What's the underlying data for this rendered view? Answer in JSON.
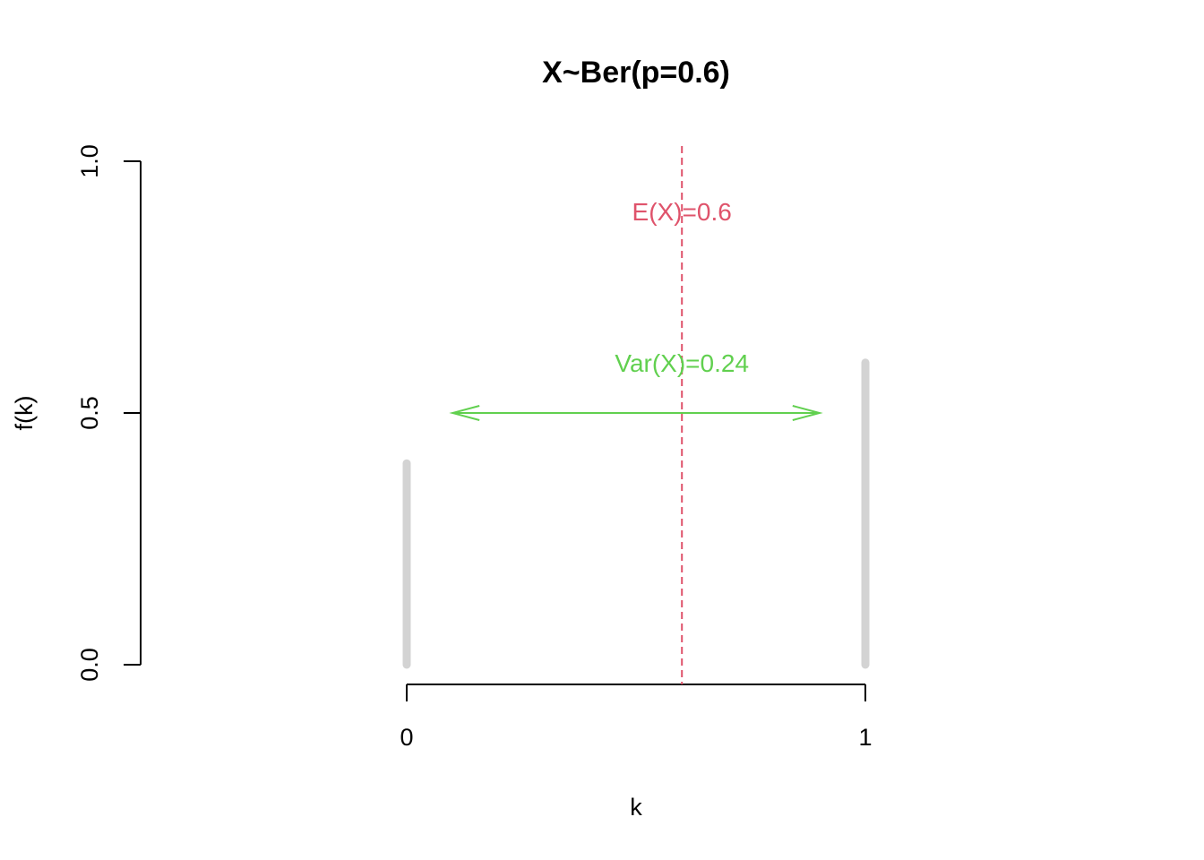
{
  "chart_data": {
    "type": "bar",
    "title": "X~Ber(p=0.6)",
    "xlabel": "k",
    "ylabel": "f(k)",
    "x": [
      0,
      1
    ],
    "values": [
      0.4,
      0.6
    ],
    "xticks": [
      "0",
      "1"
    ],
    "yticks": [
      "0.0",
      "0.5",
      "1.0"
    ],
    "xlim": [
      -0.58,
      1.48
    ],
    "ylim": [
      0,
      1
    ],
    "bar_color": "#d3d3d3",
    "expectation": {
      "value": 0.6,
      "label": "E(X)=0.6",
      "color": "#df536b"
    },
    "variance": {
      "value": 0.24,
      "label": "Var(X)=0.24",
      "color": "#61d04f",
      "arrow_from": 0.1,
      "arrow_to": 0.9,
      "arrow_y": 0.5
    }
  }
}
